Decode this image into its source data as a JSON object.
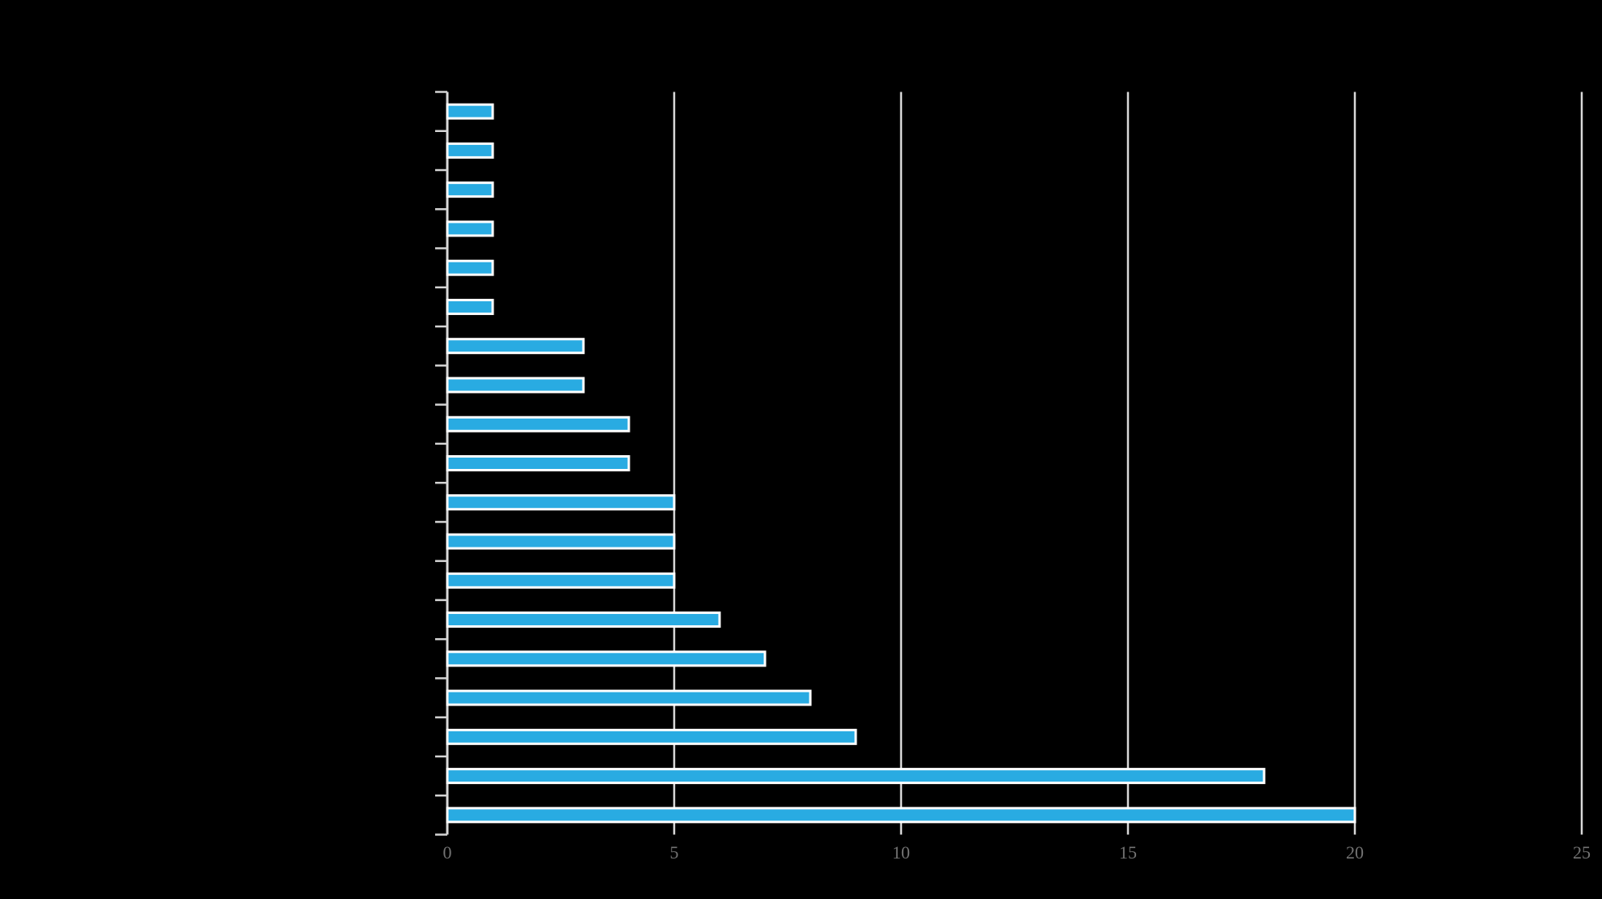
{
  "chart_data": {
    "type": "bar",
    "orientation": "horizontal",
    "title": "",
    "xlabel": "",
    "ylabel": "",
    "values": [
      1,
      1,
      1,
      1,
      1,
      1,
      3,
      3,
      4,
      4,
      5,
      5,
      5,
      6,
      7,
      8,
      9,
      18,
      20
    ],
    "xlim": [
      0,
      25
    ],
    "xticks": [
      0,
      5,
      10,
      15,
      20,
      25
    ],
    "xtick_labels": [
      "0",
      "5",
      "10",
      "15",
      "20",
      "25"
    ],
    "grid": true,
    "legend": false,
    "colors": {
      "background": "#000000",
      "bar_fill": "#29abe2",
      "bar_edge": "#ffffff",
      "gridline": "#d9d9d9",
      "axis_line": "#d9d9d9",
      "axis_tick": "#d4d4d4",
      "tick_label": "#737373"
    }
  }
}
